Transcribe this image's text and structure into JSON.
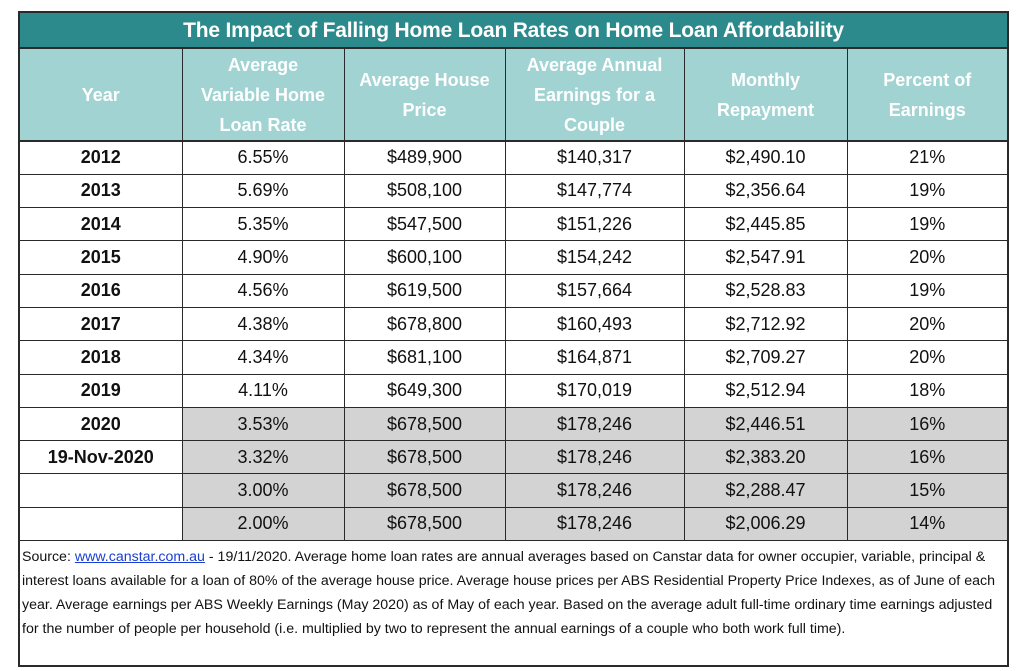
{
  "title": "The Impact of Falling Home Loan Rates on Home Loan Affordability",
  "headers": [
    {
      "line1": "Year"
    },
    {
      "line1": "Average",
      "line2": "Variable Home",
      "line3": "Loan Rate"
    },
    {
      "line1": "Average House",
      "line2": "Price"
    },
    {
      "line1": "Average Annual",
      "line2": "Earnings for a",
      "line3": "Couple"
    },
    {
      "line1": "Monthly",
      "line2": "Repayment"
    },
    {
      "line1": "Percent of",
      "line2": "Earnings"
    }
  ],
  "rows": [
    {
      "year": "2012",
      "rate": "6.55%",
      "price": "$489,900",
      "earnings": "$140,317",
      "repayment": "$2,490.10",
      "percent": "21%",
      "shaded": false
    },
    {
      "year": "2013",
      "rate": "5.69%",
      "price": "$508,100",
      "earnings": "$147,774",
      "repayment": "$2,356.64",
      "percent": "19%",
      "shaded": false
    },
    {
      "year": "2014",
      "rate": "5.35%",
      "price": "$547,500",
      "earnings": "$151,226",
      "repayment": "$2,445.85",
      "percent": "19%",
      "shaded": false
    },
    {
      "year": "2015",
      "rate": "4.90%",
      "price": "$600,100",
      "earnings": "$154,242",
      "repayment": "$2,547.91",
      "percent": "20%",
      "shaded": false
    },
    {
      "year": "2016",
      "rate": "4.56%",
      "price": "$619,500",
      "earnings": "$157,664",
      "repayment": "$2,528.83",
      "percent": "19%",
      "shaded": false
    },
    {
      "year": "2017",
      "rate": "4.38%",
      "price": "$678,800",
      "earnings": "$160,493",
      "repayment": "$2,712.92",
      "percent": "20%",
      "shaded": false
    },
    {
      "year": "2018",
      "rate": "4.34%",
      "price": "$681,100",
      "earnings": "$164,871",
      "repayment": "$2,709.27",
      "percent": "20%",
      "shaded": false
    },
    {
      "year": "2019",
      "rate": "4.11%",
      "price": "$649,300",
      "earnings": "$170,019",
      "repayment": "$2,512.94",
      "percent": "18%",
      "shaded": false
    },
    {
      "year": "2020",
      "rate": "3.53%",
      "price": "$678,500",
      "earnings": "$178,246",
      "repayment": "$2,446.51",
      "percent": "16%",
      "shaded": true
    },
    {
      "year": "19-Nov-2020",
      "rate": "3.32%",
      "price": "$678,500",
      "earnings": "$178,246",
      "repayment": "$2,383.20",
      "percent": "16%",
      "shaded": true
    },
    {
      "year": "",
      "rate": "3.00%",
      "price": "$678,500",
      "earnings": "$178,246",
      "repayment": "$2,288.47",
      "percent": "15%",
      "shaded": true
    },
    {
      "year": "",
      "rate": "2.00%",
      "price": "$678,500",
      "earnings": "$178,246",
      "repayment": "$2,006.29",
      "percent": "14%",
      "shaded": true
    }
  ],
  "source": {
    "prefix": "Source: ",
    "link_text": "www.canstar.com.au",
    "text": " - 19/11/2020. Average home loan rates are annual averages based on Canstar data for owner occupier, variable, principal & interest loans available for a loan of 80% of the average house price. Average house prices per ABS Residential Property Price Indexes, as of June of each year. Average earnings per ABS Weekly Earnings (May 2020) as of May of each year. Based on the average adult full-time ordinary time earnings adjusted for the number of people per household (i.e. multiplied by two to represent the annual earnings of a couple who both work full time)."
  }
}
